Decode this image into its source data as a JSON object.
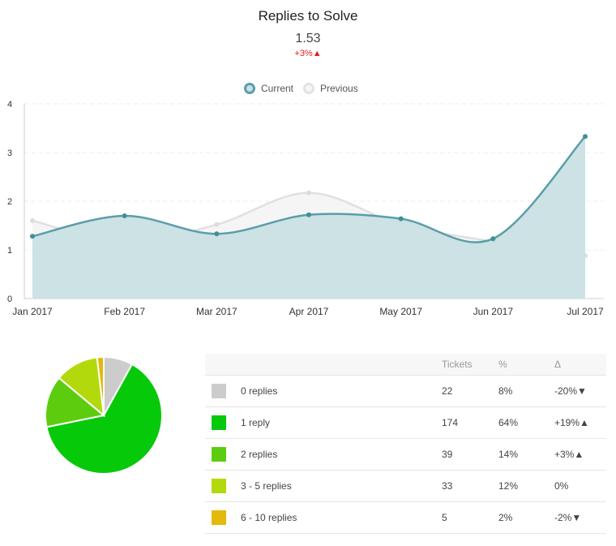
{
  "header": {
    "title": "Replies to Solve",
    "metric_value": "1.53",
    "metric_delta": "+3%▲"
  },
  "legend": [
    {
      "label": "Current",
      "color": "#5a9ea9"
    },
    {
      "label": "Previous",
      "color": "#d9d9d9"
    }
  ],
  "chart_data": [
    {
      "type": "area",
      "categories": [
        "Jan 2017",
        "Feb 2017",
        "Mar 2017",
        "Apr 2017",
        "May 2017",
        "Jun 2017",
        "Jul 2017"
      ],
      "series": [
        {
          "name": "Current",
          "values": [
            1.28,
            1.7,
            1.33,
            1.72,
            1.64,
            1.23,
            3.33
          ],
          "color": "#5a9ea9",
          "fill": "#c9e0e4"
        },
        {
          "name": "Previous",
          "values": [
            1.6,
            1.16,
            1.52,
            2.17,
            1.52,
            1.17,
            0.88
          ],
          "color": "#e2dfe0",
          "fill": "#f4f4f4"
        }
      ],
      "ylim": [
        0,
        4
      ],
      "yticks": [
        "0",
        "1",
        "2",
        "3",
        "4"
      ],
      "grid": true,
      "legend": "top-center"
    },
    {
      "type": "pie",
      "labels": [
        "0 replies",
        "1 reply",
        "2 replies",
        "3 - 5 replies",
        "6 - 10 replies"
      ],
      "values": [
        22,
        174,
        39,
        33,
        5
      ],
      "colors": [
        "#cccccc",
        "#06c90a",
        "#5ccd0e",
        "#b2d90b",
        "#e4b90b"
      ]
    }
  ],
  "table": {
    "headers": [
      "",
      "",
      "Tickets",
      "%",
      "Δ"
    ],
    "rows": [
      {
        "label": "0 replies",
        "color": "#cccccc",
        "tickets": "22",
        "pct": "8%",
        "delta": "-20%▼"
      },
      {
        "label": "1 reply",
        "color": "#06c90a",
        "tickets": "174",
        "pct": "64%",
        "delta": "+19%▲"
      },
      {
        "label": "2 replies",
        "color": "#5ccd0e",
        "tickets": "39",
        "pct": "14%",
        "delta": "+3%▲"
      },
      {
        "label": "3 - 5 replies",
        "color": "#b2d90b",
        "tickets": "33",
        "pct": "12%",
        "delta": "0%"
      },
      {
        "label": "6 - 10 replies",
        "color": "#e4b90b",
        "tickets": "5",
        "pct": "2%",
        "delta": "-2%▼"
      }
    ]
  }
}
